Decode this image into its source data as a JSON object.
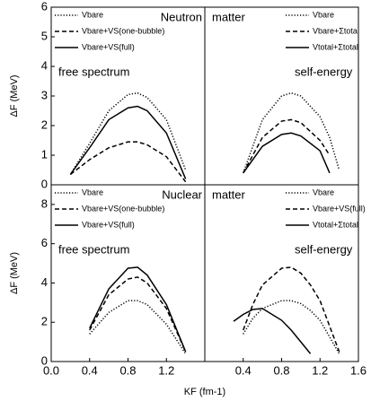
{
  "chart_data": [
    {
      "type": "line",
      "ylabel": "ΔF (MeV)",
      "annotations": [
        "Neutron",
        "free spectrum"
      ],
      "legend": "upper left",
      "xlim": [
        0,
        1.6
      ],
      "ylim": [
        0,
        6
      ],
      "yticks": [
        0,
        1,
        2,
        3,
        4,
        5,
        6
      ],
      "x": [
        0.2,
        0.4,
        0.6,
        0.8,
        0.9,
        1.0,
        1.2,
        1.4
      ],
      "series": [
        {
          "name": "Vbare",
          "color": "#000000",
          "linestyle": "dotted",
          "values": [
            0.35,
            1.4,
            2.5,
            3.05,
            3.1,
            2.95,
            2.2,
            0.5
          ]
        },
        {
          "name": "Vbare+VS(one-bubble)",
          "color": "#000000",
          "linestyle": "dashed",
          "values": [
            0.35,
            0.85,
            1.25,
            1.45,
            1.45,
            1.35,
            0.95,
            0.1
          ]
        },
        {
          "name": "Vbare+VS(full)",
          "color": "#000000",
          "linestyle": "solid",
          "values": [
            0.35,
            1.25,
            2.2,
            2.6,
            2.65,
            2.5,
            1.75,
            0.2
          ]
        }
      ]
    },
    {
      "type": "line",
      "annotations": [
        "matter",
        "self-energy"
      ],
      "legend": "upper right",
      "xlim": [
        0,
        1.6
      ],
      "ylim": [
        0,
        6
      ],
      "x": [
        0.4,
        0.6,
        0.8,
        0.9,
        1.0,
        1.2,
        1.3,
        1.4
      ],
      "series": [
        {
          "name": "Vbare",
          "color": "#000000",
          "linestyle": "dotted",
          "values": [
            0.4,
            2.2,
            3.0,
            3.1,
            3.0,
            2.3,
            1.6,
            0.5
          ]
        },
        {
          "name": "Vbare+Σtotal",
          "color": "#000000",
          "linestyle": "dashed",
          "values": [
            0.4,
            1.6,
            2.15,
            2.2,
            2.1,
            1.5,
            1.0,
            null
          ]
        },
        {
          "name": "Vtotal+Σtotal",
          "color": "#000000",
          "linestyle": "solid",
          "values": [
            0.4,
            1.3,
            1.7,
            1.75,
            1.65,
            1.15,
            0.4,
            null
          ]
        }
      ]
    },
    {
      "type": "line",
      "ylabel": "ΔF (MeV)",
      "xlabel": "KF (fm-1)",
      "annotations": [
        "Nuclear",
        "free spectrum"
      ],
      "legend": "upper left",
      "xlim": [
        0,
        1.6
      ],
      "ylim": [
        0,
        9
      ],
      "yticks": [
        0,
        2,
        4,
        6,
        8
      ],
      "xticks": [
        {
          "value": 0,
          "label": "0.0"
        },
        0.4,
        0.8,
        1.2
      ],
      "x": [
        0.4,
        0.6,
        0.8,
        0.9,
        1.0,
        1.2,
        1.4
      ],
      "series": [
        {
          "name": "Vbare",
          "color": "#000000",
          "linestyle": "dotted",
          "values": [
            1.4,
            2.5,
            3.1,
            3.1,
            2.9,
            1.9,
            0.4
          ]
        },
        {
          "name": "Vbare+VS(one-bubble)",
          "color": "#000000",
          "linestyle": "dashed",
          "values": [
            1.6,
            3.4,
            4.2,
            4.3,
            4.0,
            2.7,
            0.5
          ]
        },
        {
          "name": "Vbare+VS(full)",
          "color": "#000000",
          "linestyle": "solid",
          "values": [
            1.7,
            3.7,
            4.75,
            4.8,
            4.4,
            2.9,
            0.5
          ]
        }
      ]
    },
    {
      "type": "line",
      "annotations": [
        "matter",
        "self-energy"
      ],
      "legend": "upper right",
      "xlim": [
        0,
        1.6
      ],
      "ylim": [
        0,
        9
      ],
      "xticks": [
        0.4,
        0.8,
        1.2,
        1.6
      ],
      "x": [
        0.3,
        0.4,
        0.5,
        0.6,
        0.8,
        0.9,
        1.0,
        1.1,
        1.2,
        1.4
      ],
      "series": [
        {
          "name": "Vbare",
          "color": "#000000",
          "linestyle": "dotted",
          "values": [
            null,
            1.4,
            2.2,
            2.7,
            3.1,
            3.1,
            2.95,
            2.6,
            2.1,
            0.4
          ]
        },
        {
          "name": "Vbare+VS(full)",
          "color": "#000000",
          "linestyle": "dashed",
          "values": [
            null,
            1.6,
            2.9,
            3.9,
            4.75,
            4.8,
            4.5,
            3.9,
            3.1,
            0.5
          ]
        },
        {
          "name": "Vtotal+Σtotal",
          "color": "#000000",
          "linestyle": "solid",
          "values": [
            2.05,
            2.4,
            2.65,
            2.7,
            2.1,
            1.6,
            1.0,
            0.4,
            null,
            null
          ]
        }
      ]
    }
  ]
}
